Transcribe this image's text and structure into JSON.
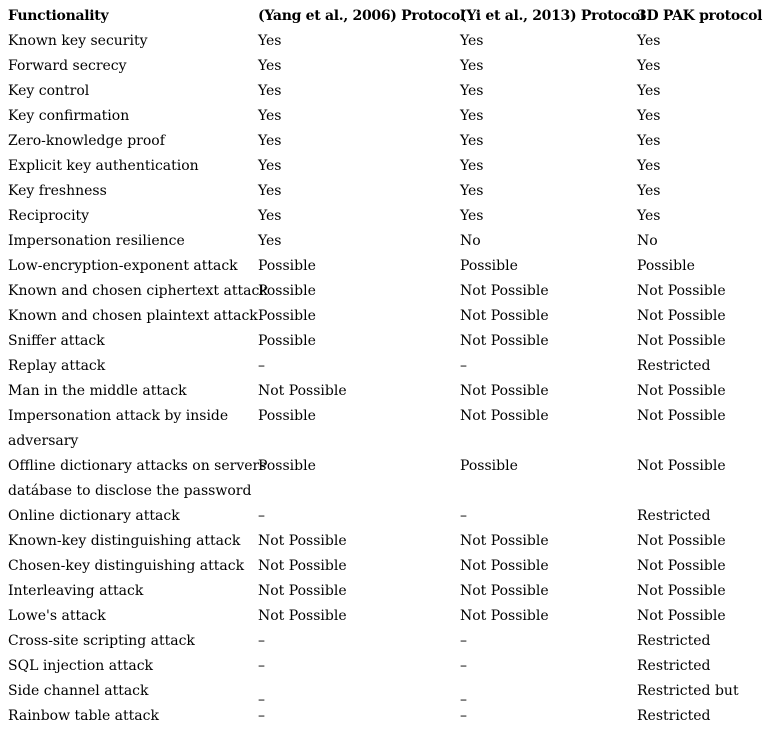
{
  "page": {
    "background_color": "#ffffff",
    "text_color": "#000000"
  },
  "table": {
    "headers": [
      "Functionality",
      "(Yang et al., 2006) Protocol",
      "(Yi et al., 2013) Protocol",
      "3D PAK protocol"
    ],
    "rows": [
      {
        "functionality": "Known key security",
        "yang": "Yes",
        "yi": "Yes",
        "pak": "Yes",
        "dash_low": false
      },
      {
        "functionality": "Forward secrecy",
        "yang": "Yes",
        "yi": "Yes",
        "pak": "Yes",
        "dash_low": false
      },
      {
        "functionality": "Key control",
        "yang": "Yes",
        "yi": "Yes",
        "pak": "Yes",
        "dash_low": false
      },
      {
        "functionality": "Key confirmation",
        "yang": "Yes",
        "yi": "Yes",
        "pak": "Yes",
        "dash_low": false
      },
      {
        "functionality": "Zero-knowledge proof",
        "yang": "Yes",
        "yi": "Yes",
        "pak": "Yes",
        "dash_low": false
      },
      {
        "functionality": "Explicit key authentication",
        "yang": "Yes",
        "yi": "Yes",
        "pak": "Yes",
        "dash_low": false
      },
      {
        "functionality": "Key freshness",
        "yang": "Yes",
        "yi": "Yes",
        "pak": "Yes",
        "dash_low": false
      },
      {
        "functionality": "Reciprocity",
        "yang": "Yes",
        "yi": "Yes",
        "pak": "Yes",
        "dash_low": false
      },
      {
        "functionality": "Impersonation resilience",
        "yang": "Yes",
        "yi": "No",
        "pak": "No",
        "dash_low": false
      },
      {
        "functionality": "Low-encryption-exponent attack",
        "yang": "Possible",
        "yi": "Possible",
        "pak": "Possible",
        "dash_low": false
      },
      {
        "functionality": "Known and chosen ciphertext attack",
        "yang": "Possible",
        "yi": "Not Possible",
        "pak": "Not Possible",
        "dash_low": false
      },
      {
        "functionality": "Known and chosen plaintext attack",
        "yang": "Possible",
        "yi": "Not Possible",
        "pak": "Not Possible",
        "dash_low": false
      },
      {
        "functionality": "Sniffer attack",
        "yang": "Possible",
        "yi": "Not Possible",
        "pak": "Not Possible",
        "dash_low": false
      },
      {
        "functionality": "Replay attack",
        "yang": "–",
        "yi": "–",
        "pak": "Restricted",
        "dash_low": false
      },
      {
        "functionality": "Man in the middle attack",
        "yang": "Not Possible",
        "yi": "Not Possible",
        "pak": "Not Possible",
        "dash_low": false
      },
      {
        "functionality": "Impersonation attack by inside\nadversary",
        "yang": "Possible",
        "yi": "Not Possible",
        "pak": "Not Possible",
        "dash_low": false
      },
      {
        "functionality": "Offline dictionary attacks on servers\ndatábase to disclose the password",
        "yang": "Possible",
        "yi": "Possible",
        "pak": "Not Possible",
        "dash_low": false
      },
      {
        "functionality": "Online dictionary attack",
        "yang": "–",
        "yi": "–",
        "pak": "Restricted",
        "dash_low": false
      },
      {
        "functionality": "Known-key distinguishing attack",
        "yang": "Not Possible",
        "yi": "Not Possible",
        "pak": "Not Possible",
        "dash_low": false
      },
      {
        "functionality": "Chosen-key distinguishing attack",
        "yang": "Not Possible",
        "yi": "Not Possible",
        "pak": "Not Possible",
        "dash_low": false
      },
      {
        "functionality": "Interleaving attack",
        "yang": "Not Possible",
        "yi": "Not Possible",
        "pak": "Not Possible",
        "dash_low": false
      },
      {
        "functionality": "Lowe's attack",
        "yang": "Not Possible",
        "yi": "Not Possible",
        "pak": "Not Possible",
        "dash_low": false
      },
      {
        "functionality": "Cross-site scripting attack",
        "yang": "–",
        "yi": "–",
        "pak": "Restricted",
        "dash_low": false
      },
      {
        "functionality": "SQL injection attack",
        "yang": "–",
        "yi": "–",
        "pak": "Restricted",
        "dash_low": false
      },
      {
        "functionality": "Side channel attack",
        "yang": "–",
        "yi": "–",
        "pak": "Restricted but",
        "dash_low": true
      },
      {
        "functionality": "Rainbow table attack",
        "yang": "–",
        "yi": "–",
        "pak": "Restricted",
        "dash_low": false
      }
    ]
  }
}
